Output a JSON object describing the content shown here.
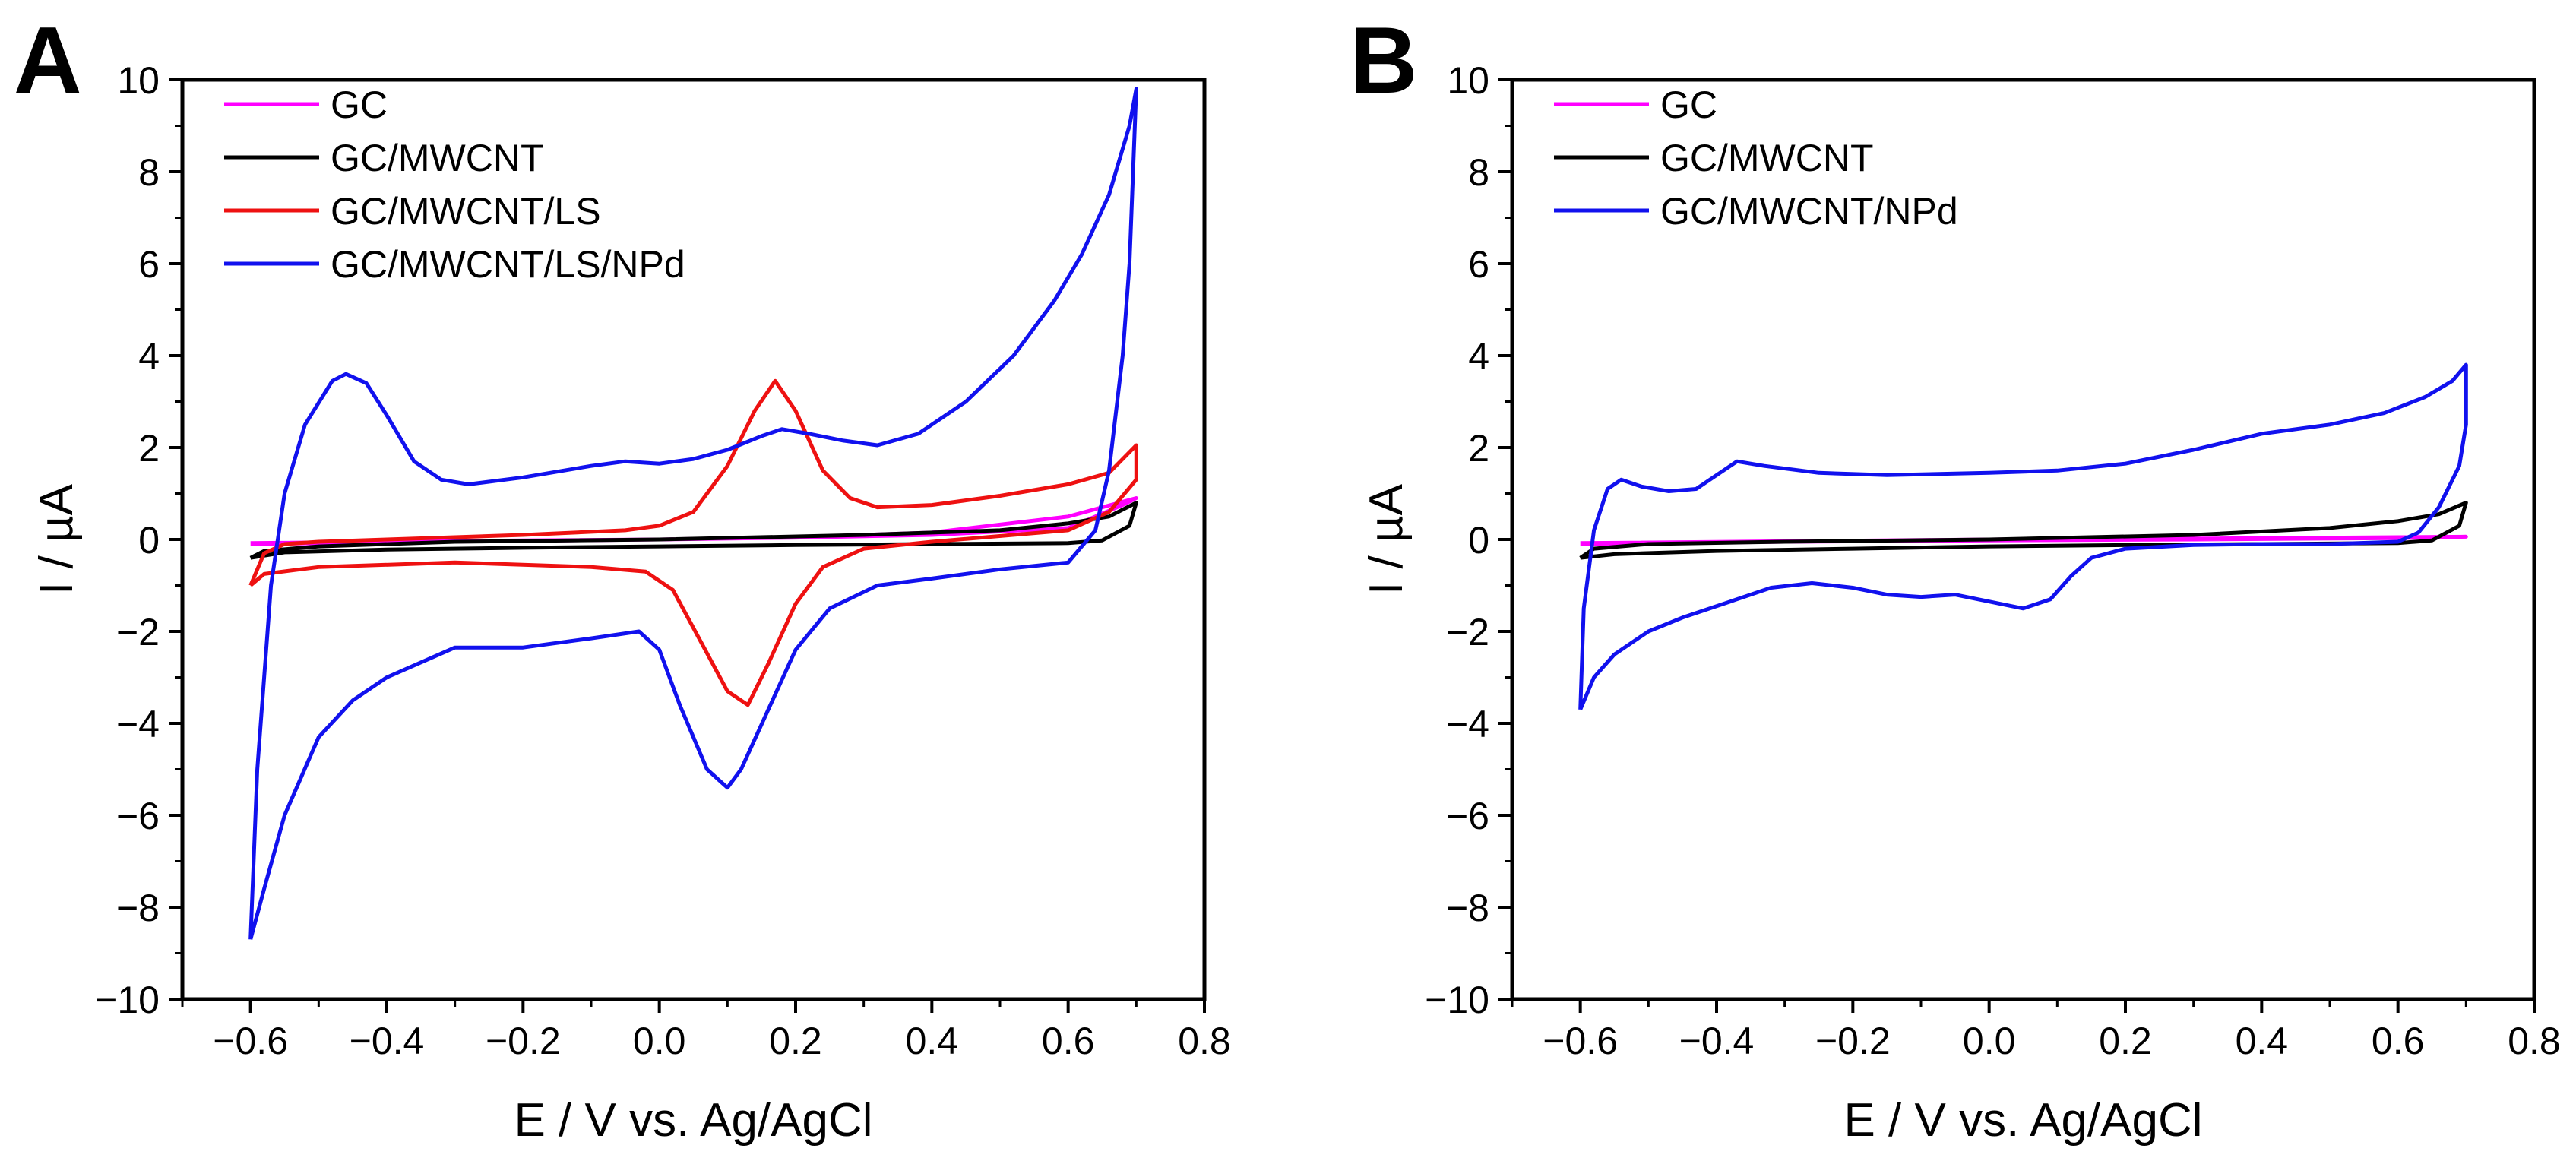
{
  "chart_data": [
    {
      "type": "line",
      "panel_label": "A",
      "xlabel": "E / V  vs.  Ag/AgCl",
      "ylabel": "I / µA",
      "xlim": [
        -0.7,
        0.8
      ],
      "ylim": [
        -10,
        10
      ],
      "xticks": [
        -0.6,
        -0.4,
        -0.2,
        0.0,
        0.2,
        0.4,
        0.6,
        0.8
      ],
      "xtick_labels": [
        "−0.6",
        "−0.4",
        "−0.2",
        "0.0",
        "0.2",
        "0.4",
        "0.6",
        "0.8"
      ],
      "yticks": [
        -10,
        -8,
        -6,
        -4,
        -2,
        0,
        2,
        4,
        6,
        8,
        10
      ],
      "ytick_labels": [
        "−10",
        "−8",
        "−6",
        "−4",
        "−2",
        "0",
        "2",
        "4",
        "6",
        "8",
        "10"
      ],
      "grid": false,
      "legend_position": "top-left",
      "series": [
        {
          "name": "GC",
          "color": "#ff00ff",
          "points": [
            [
              -0.6,
              -0.08
            ],
            [
              -0.4,
              -0.05
            ],
            [
              -0.2,
              -0.02
            ],
            [
              0.0,
              0.0
            ],
            [
              0.2,
              0.05
            ],
            [
              0.4,
              0.15
            ],
            [
              0.6,
              0.5
            ],
            [
              0.7,
              0.9
            ],
            [
              0.68,
              0.75
            ],
            [
              0.6,
              0.25
            ],
            [
              0.4,
              0.1
            ],
            [
              0.2,
              0.04
            ],
            [
              0.0,
              0.0
            ],
            [
              -0.2,
              -0.03
            ],
            [
              -0.4,
              -0.06
            ],
            [
              -0.6,
              -0.1
            ]
          ]
        },
        {
          "name": "GC/MWCNT",
          "color": "#000000",
          "points": [
            [
              -0.6,
              -0.4
            ],
            [
              -0.58,
              -0.25
            ],
            [
              -0.5,
              -0.15
            ],
            [
              -0.3,
              -0.05
            ],
            [
              0.0,
              0.0
            ],
            [
              0.3,
              0.1
            ],
            [
              0.5,
              0.2
            ],
            [
              0.6,
              0.35
            ],
            [
              0.66,
              0.5
            ],
            [
              0.7,
              0.8
            ],
            [
              0.69,
              0.3
            ],
            [
              0.65,
              -0.02
            ],
            [
              0.6,
              -0.08
            ],
            [
              0.4,
              -0.1
            ],
            [
              0.2,
              -0.12
            ],
            [
              0.0,
              -0.15
            ],
            [
              -0.2,
              -0.18
            ],
            [
              -0.4,
              -0.22
            ],
            [
              -0.55,
              -0.28
            ],
            [
              -0.6,
              -0.4
            ]
          ]
        },
        {
          "name": "GC/MWCNT/LS",
          "color": "#ee1111",
          "points": [
            [
              -0.6,
              -1.0
            ],
            [
              -0.58,
              -0.3
            ],
            [
              -0.55,
              -0.1
            ],
            [
              -0.5,
              -0.05
            ],
            [
              -0.4,
              0.0
            ],
            [
              -0.2,
              0.1
            ],
            [
              -0.05,
              0.2
            ],
            [
              0.0,
              0.3
            ],
            [
              0.05,
              0.6
            ],
            [
              0.1,
              1.6
            ],
            [
              0.14,
              2.8
            ],
            [
              0.17,
              3.45
            ],
            [
              0.2,
              2.8
            ],
            [
              0.24,
              1.5
            ],
            [
              0.28,
              0.9
            ],
            [
              0.32,
              0.7
            ],
            [
              0.4,
              0.75
            ],
            [
              0.5,
              0.95
            ],
            [
              0.6,
              1.2
            ],
            [
              0.66,
              1.45
            ],
            [
              0.7,
              2.05
            ],
            [
              0.7,
              1.3
            ],
            [
              0.66,
              0.6
            ],
            [
              0.6,
              0.2
            ],
            [
              0.4,
              -0.05
            ],
            [
              0.3,
              -0.2
            ],
            [
              0.24,
              -0.6
            ],
            [
              0.2,
              -1.4
            ],
            [
              0.16,
              -2.7
            ],
            [
              0.13,
              -3.6
            ],
            [
              0.1,
              -3.3
            ],
            [
              0.06,
              -2.2
            ],
            [
              0.02,
              -1.1
            ],
            [
              -0.02,
              -0.7
            ],
            [
              -0.1,
              -0.6
            ],
            [
              -0.3,
              -0.5
            ],
            [
              -0.5,
              -0.6
            ],
            [
              -0.58,
              -0.75
            ],
            [
              -0.6,
              -1.0
            ]
          ]
        },
        {
          "name": "GC/MWCNT/LS/NPd",
          "color": "#1111ee",
          "points": [
            [
              -0.6,
              -8.7
            ],
            [
              -0.59,
              -5.0
            ],
            [
              -0.57,
              -1.0
            ],
            [
              -0.55,
              1.0
            ],
            [
              -0.52,
              2.5
            ],
            [
              -0.48,
              3.45
            ],
            [
              -0.46,
              3.6
            ],
            [
              -0.43,
              3.4
            ],
            [
              -0.4,
              2.7
            ],
            [
              -0.36,
              1.7
            ],
            [
              -0.32,
              1.3
            ],
            [
              -0.28,
              1.2
            ],
            [
              -0.2,
              1.35
            ],
            [
              -0.1,
              1.6
            ],
            [
              -0.05,
              1.7
            ],
            [
              0.0,
              1.65
            ],
            [
              0.05,
              1.75
            ],
            [
              0.1,
              1.95
            ],
            [
              0.15,
              2.25
            ],
            [
              0.18,
              2.4
            ],
            [
              0.22,
              2.3
            ],
            [
              0.27,
              2.15
            ],
            [
              0.32,
              2.05
            ],
            [
              0.38,
              2.3
            ],
            [
              0.45,
              3.0
            ],
            [
              0.52,
              4.0
            ],
            [
              0.58,
              5.2
            ],
            [
              0.62,
              6.2
            ],
            [
              0.66,
              7.5
            ],
            [
              0.69,
              9.0
            ],
            [
              0.7,
              9.8
            ],
            [
              0.69,
              6.0
            ],
            [
              0.68,
              4.0
            ],
            [
              0.66,
              1.5
            ],
            [
              0.64,
              0.2
            ],
            [
              0.6,
              -0.5
            ],
            [
              0.5,
              -0.65
            ],
            [
              0.4,
              -0.85
            ],
            [
              0.32,
              -1.0
            ],
            [
              0.25,
              -1.5
            ],
            [
              0.2,
              -2.4
            ],
            [
              0.16,
              -3.7
            ],
            [
              0.12,
              -5.0
            ],
            [
              0.1,
              -5.4
            ],
            [
              0.07,
              -5.0
            ],
            [
              0.03,
              -3.6
            ],
            [
              0.0,
              -2.4
            ],
            [
              -0.03,
              -2.0
            ],
            [
              -0.1,
              -2.15
            ],
            [
              -0.2,
              -2.35
            ],
            [
              -0.3,
              -2.35
            ],
            [
              -0.4,
              -3.0
            ],
            [
              -0.45,
              -3.5
            ],
            [
              -0.5,
              -4.3
            ],
            [
              -0.55,
              -6.0
            ],
            [
              -0.58,
              -7.6
            ],
            [
              -0.6,
              -8.7
            ]
          ]
        }
      ]
    },
    {
      "type": "line",
      "panel_label": "B",
      "xlabel": "E / V  vs.  Ag/AgCl",
      "ylabel": "I / µA",
      "xlim": [
        -0.7,
        0.8
      ],
      "ylim": [
        -10,
        10
      ],
      "xticks": [
        -0.6,
        -0.4,
        -0.2,
        0.0,
        0.2,
        0.4,
        0.6,
        0.8
      ],
      "xtick_labels": [
        "−0.6",
        "−0.4",
        "−0.2",
        "0.0",
        "0.2",
        "0.4",
        "0.6",
        "0.8"
      ],
      "yticks": [
        -10,
        -8,
        -6,
        -4,
        -2,
        0,
        2,
        4,
        6,
        8,
        10
      ],
      "ytick_labels": [
        "−10",
        "−8",
        "−6",
        "−4",
        "−2",
        "0",
        "2",
        "4",
        "6",
        "8",
        "10"
      ],
      "grid": false,
      "legend_position": "top-left",
      "series": [
        {
          "name": "GC",
          "color": "#ff00ff",
          "points": [
            [
              -0.6,
              -0.08
            ],
            [
              -0.3,
              -0.04
            ],
            [
              0.0,
              0.0
            ],
            [
              0.3,
              0.02
            ],
            [
              0.6,
              0.05
            ],
            [
              0.7,
              0.06
            ],
            [
              0.6,
              0.03
            ],
            [
              0.3,
              0.0
            ],
            [
              0.0,
              -0.02
            ],
            [
              -0.3,
              -0.05
            ],
            [
              -0.6,
              -0.1
            ]
          ]
        },
        {
          "name": "GC/MWCNT",
          "color": "#000000",
          "points": [
            [
              -0.6,
              -0.4
            ],
            [
              -0.58,
              -0.2
            ],
            [
              -0.5,
              -0.1
            ],
            [
              -0.3,
              -0.05
            ],
            [
              0.0,
              0.0
            ],
            [
              0.3,
              0.1
            ],
            [
              0.5,
              0.25
            ],
            [
              0.6,
              0.4
            ],
            [
              0.66,
              0.55
            ],
            [
              0.7,
              0.8
            ],
            [
              0.69,
              0.3
            ],
            [
              0.65,
              -0.02
            ],
            [
              0.6,
              -0.08
            ],
            [
              0.4,
              -0.1
            ],
            [
              0.2,
              -0.12
            ],
            [
              0.0,
              -0.15
            ],
            [
              -0.2,
              -0.2
            ],
            [
              -0.4,
              -0.25
            ],
            [
              -0.55,
              -0.32
            ],
            [
              -0.6,
              -0.4
            ]
          ]
        },
        {
          "name": "GC/MWCNT/NPd",
          "color": "#1111ee",
          "points": [
            [
              -0.6,
              -3.7
            ],
            [
              -0.595,
              -1.5
            ],
            [
              -0.58,
              0.2
            ],
            [
              -0.56,
              1.1
            ],
            [
              -0.54,
              1.3
            ],
            [
              -0.51,
              1.15
            ],
            [
              -0.47,
              1.05
            ],
            [
              -0.43,
              1.1
            ],
            [
              -0.4,
              1.4
            ],
            [
              -0.37,
              1.7
            ],
            [
              -0.33,
              1.6
            ],
            [
              -0.25,
              1.45
            ],
            [
              -0.15,
              1.4
            ],
            [
              0.0,
              1.45
            ],
            [
              0.1,
              1.5
            ],
            [
              0.2,
              1.65
            ],
            [
              0.3,
              1.95
            ],
            [
              0.4,
              2.3
            ],
            [
              0.5,
              2.5
            ],
            [
              0.58,
              2.75
            ],
            [
              0.64,
              3.1
            ],
            [
              0.68,
              3.45
            ],
            [
              0.7,
              3.8
            ],
            [
              0.7,
              2.5
            ],
            [
              0.69,
              1.6
            ],
            [
              0.66,
              0.7
            ],
            [
              0.63,
              0.15
            ],
            [
              0.6,
              -0.05
            ],
            [
              0.5,
              -0.1
            ],
            [
              0.4,
              -0.1
            ],
            [
              0.3,
              -0.12
            ],
            [
              0.2,
              -0.2
            ],
            [
              0.15,
              -0.4
            ],
            [
              0.12,
              -0.8
            ],
            [
              0.09,
              -1.3
            ],
            [
              0.05,
              -1.5
            ],
            [
              0.0,
              -1.35
            ],
            [
              -0.05,
              -1.2
            ],
            [
              -0.1,
              -1.25
            ],
            [
              -0.15,
              -1.2
            ],
            [
              -0.2,
              -1.05
            ],
            [
              -0.26,
              -0.95
            ],
            [
              -0.32,
              -1.05
            ],
            [
              -0.38,
              -1.35
            ],
            [
              -0.45,
              -1.7
            ],
            [
              -0.5,
              -2.0
            ],
            [
              -0.55,
              -2.5
            ],
            [
              -0.58,
              -3.0
            ],
            [
              -0.6,
              -3.7
            ]
          ]
        }
      ]
    }
  ]
}
